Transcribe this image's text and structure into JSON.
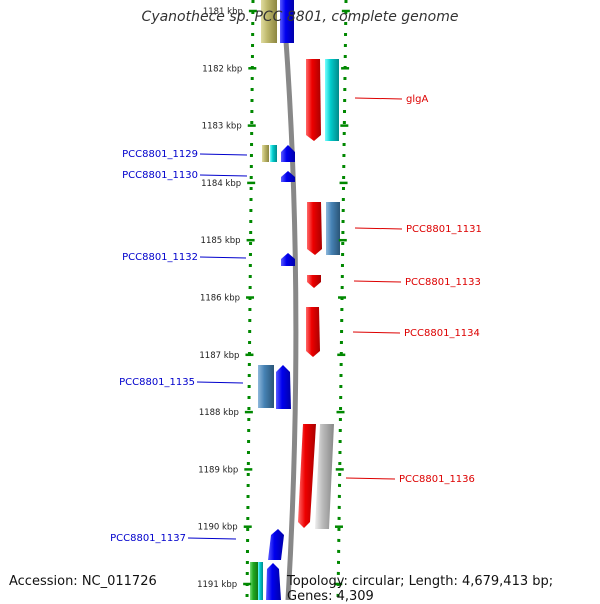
{
  "title": "Cyanothece sp. PCC 8801, complete genome",
  "accession": "Accession: NC_011726",
  "topology": "Topology: circular; Length: 4,679,413 bp; Genes: 4,309",
  "ticks": [
    {
      "label": "1181 kbp",
      "kbp": 1181
    },
    {
      "label": "1182 kbp",
      "kbp": 1182
    },
    {
      "label": "1183 kbp",
      "kbp": 1183
    },
    {
      "label": "1184 kbp",
      "kbp": 1184
    },
    {
      "label": "1185 kbp",
      "kbp": 1185
    },
    {
      "label": "1186 kbp",
      "kbp": 1186
    },
    {
      "label": "1187 kbp",
      "kbp": 1187
    },
    {
      "label": "1188 kbp",
      "kbp": 1188
    },
    {
      "label": "1189 kbp",
      "kbp": 1189
    },
    {
      "label": "1190 kbp",
      "kbp": 1190
    },
    {
      "label": "1191 kbp",
      "kbp": 1191
    }
  ],
  "left_labels": [
    {
      "text": "PCC8801_1129",
      "color": "#0000cc"
    },
    {
      "text": "PCC8801_1130",
      "color": "#0000cc"
    },
    {
      "text": "PCC8801_1132",
      "color": "#0000cc"
    },
    {
      "text": "PCC8801_1135",
      "color": "#0000cc"
    },
    {
      "text": "PCC8801_1137",
      "color": "#0000cc"
    }
  ],
  "right_labels": [
    {
      "text": "glgA",
      "color": "#dd0000"
    },
    {
      "text": "PCC8801_1131",
      "color": "#dd0000"
    },
    {
      "text": "PCC8801_1133",
      "color": "#dd0000"
    },
    {
      "text": "PCC8801_1134",
      "color": "#dd0000"
    },
    {
      "text": "PCC8801_1136",
      "color": "#dd0000"
    }
  ],
  "colors": {
    "reverse_gene": "#0000ee",
    "forward_gene": "#ee0000",
    "tick": "#008800",
    "backbone": "#888888",
    "cyan": "#00cccc",
    "steelblue": "#4682b4",
    "gray": "#bbbbbb",
    "khaki": "#bdb76b",
    "green": "#22aa22"
  }
}
